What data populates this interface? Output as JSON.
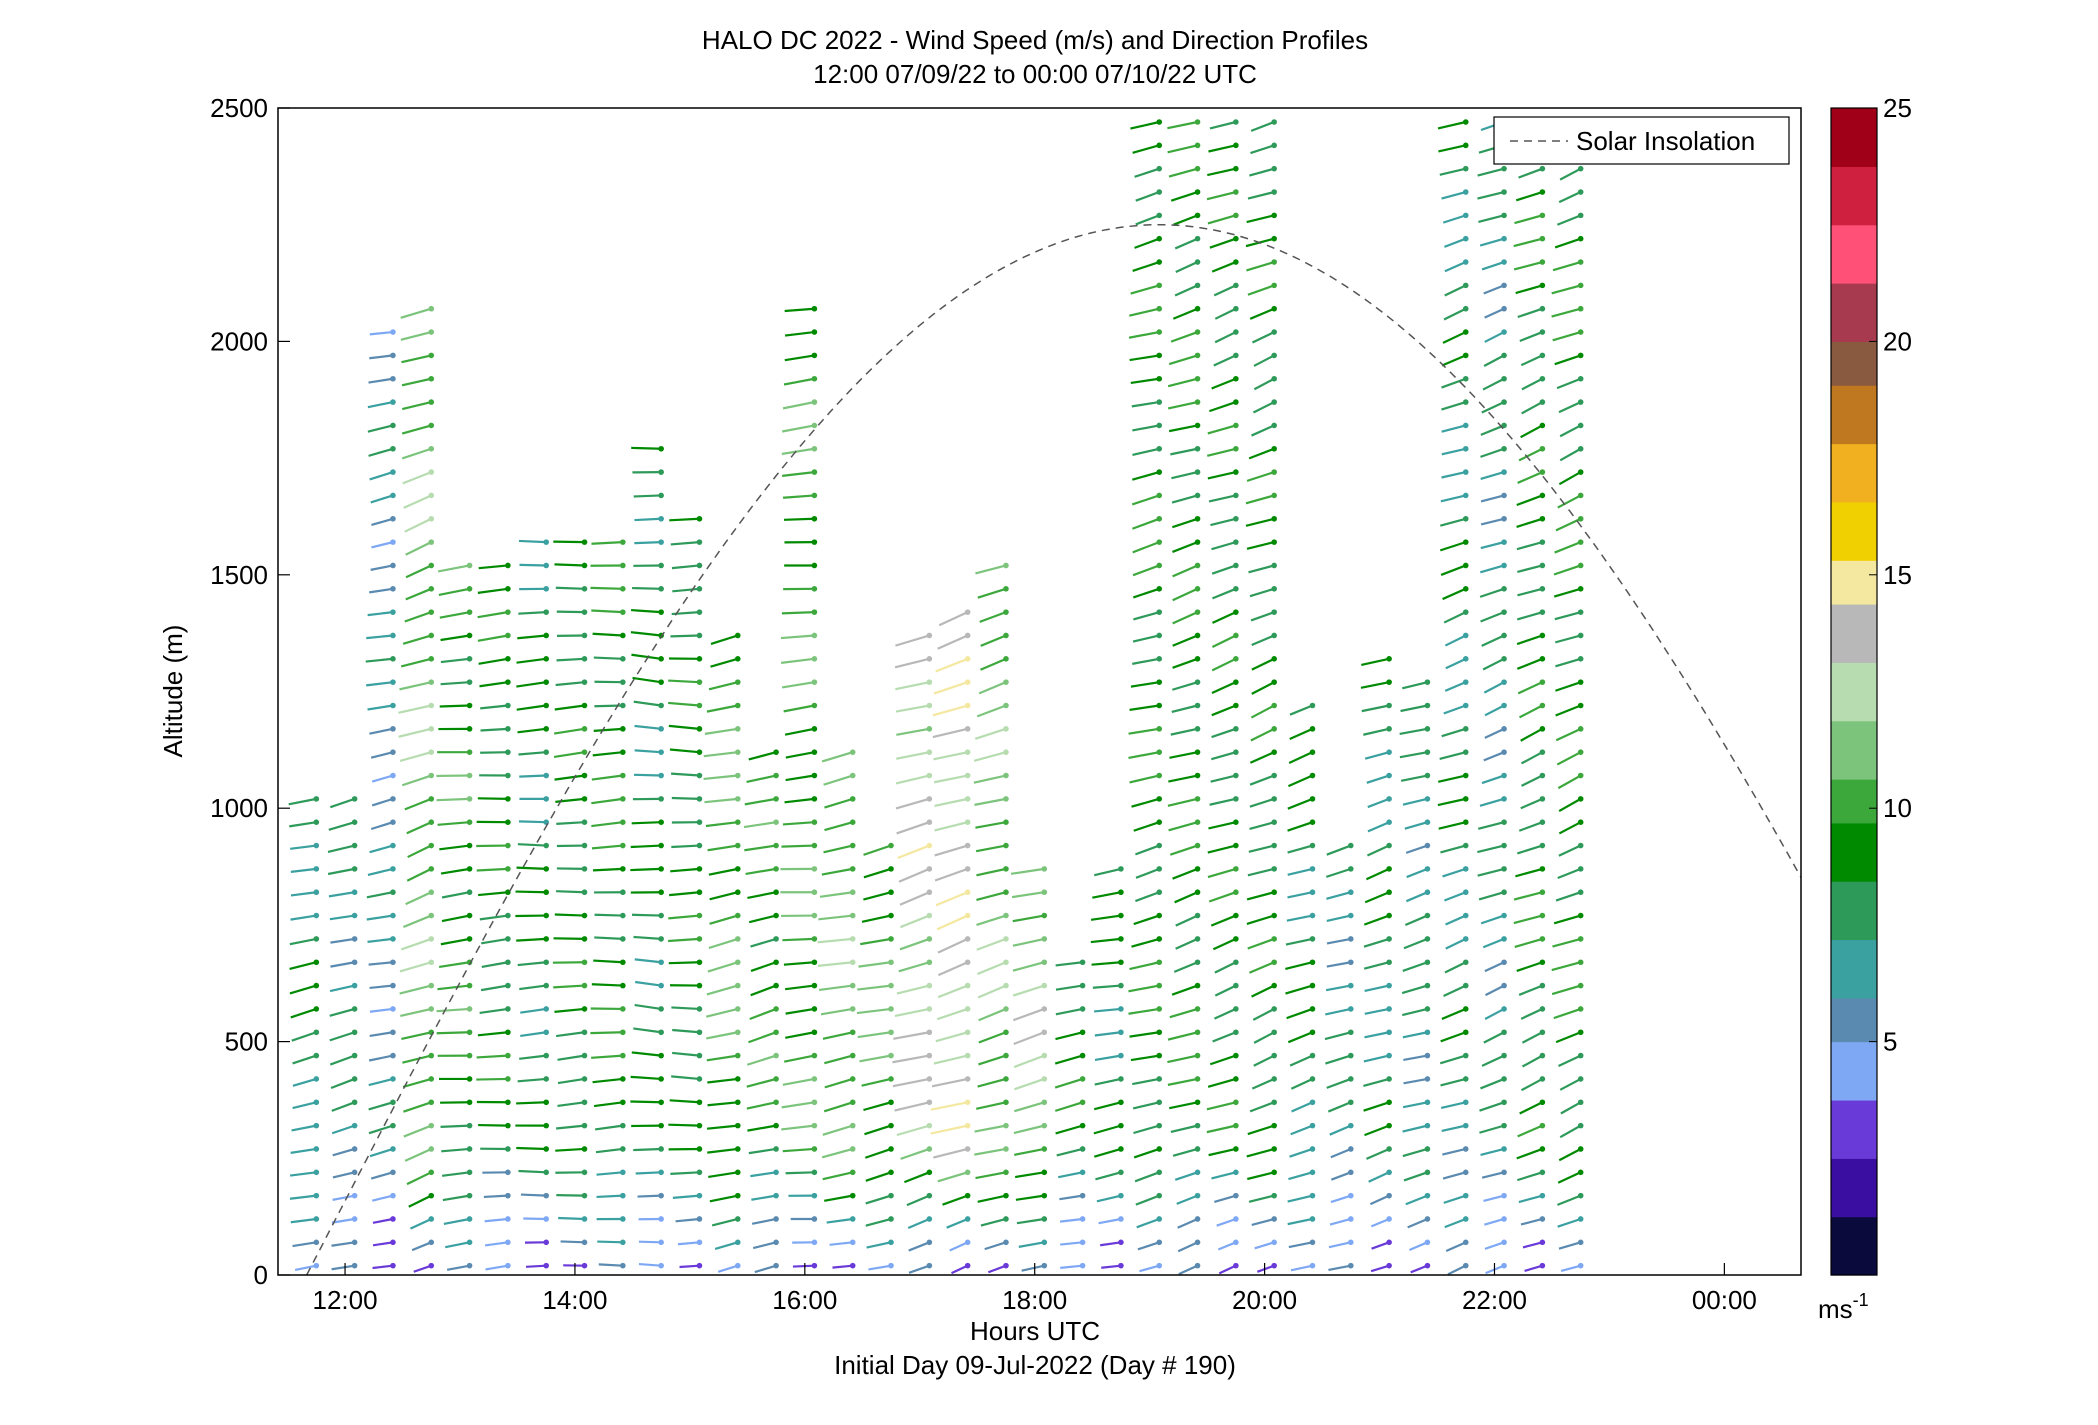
{
  "chart_data": {
    "type": "scatter",
    "title": "HALO DC 2022 - Wind Speed (m/s) and Direction Profiles",
    "subtitle": "12:00 07/09/22 to 00:00 07/10/22  UTC",
    "xlabel": "Hours UTC",
    "xlabel2": "Initial Day 09-Jul-2022 (Day # 190)",
    "ylabel": "Altitude (m)",
    "xlim": [
      "11:25",
      "00:40"
    ],
    "ylim": [
      0,
      2500
    ],
    "x_ticks": [
      "12:00",
      "14:00",
      "16:00",
      "18:00",
      "20:00",
      "22:00",
      "00:00"
    ],
    "y_ticks": [
      "0",
      "500",
      "1000",
      "1500",
      "2000",
      "2500"
    ],
    "grid": false,
    "legend": {
      "position": "top-right",
      "entries": [
        "Solar Insolation"
      ]
    },
    "colorbar": {
      "range": [
        0,
        25
      ],
      "ticks": [
        "5",
        "10",
        "15",
        "20",
        "25"
      ],
      "unit_base": "ms",
      "unit_exp": "-1",
      "colors": [
        "#0a0a3c",
        "#3a0ea0",
        "#6a3ad8",
        "#7ea8f4",
        "#5a8ab0",
        "#3aa0a0",
        "#2e9a5a",
        "#008a00",
        "#3ca83c",
        "#7cc47c",
        "#b6dcb0",
        "#b8b8b8",
        "#f4e8a0",
        "#f0d000",
        "#f0b020",
        "#c07820",
        "#8a5a40",
        "#a83a50",
        "#ff5078",
        "#d02040",
        "#a00018"
      ]
    },
    "series": [
      {
        "name": "Solar Insolation",
        "kind": "dashed-curve",
        "peak_time": "19:05",
        "peak_altitude_m": 2250,
        "start_time": "11:40",
        "end_time": "00:40",
        "end_altitude_m": 760
      }
    ],
    "profiles": [
      {
        "time": "11:45",
        "top_m": 1030,
        "speed_ms": 7.5,
        "dir_deg": 248
      },
      {
        "time": "12:05",
        "top_m": 1060,
        "speed_ms": 7.0,
        "dir_deg": 245
      },
      {
        "time": "12:25",
        "top_m": 2040,
        "speed_ms": 6.0,
        "dir_deg": 250
      },
      {
        "time": "12:45",
        "top_m": 2080,
        "speed_ms": 11.0,
        "dir_deg": 238
      },
      {
        "time": "13:05",
        "top_m": 1530,
        "speed_ms": 9.5,
        "dir_deg": 260
      },
      {
        "time": "13:25",
        "top_m": 1540,
        "speed_ms": 8.5,
        "dir_deg": 262
      },
      {
        "time": "13:45",
        "top_m": 1570,
        "speed_ms": 8.0,
        "dir_deg": 265
      },
      {
        "time": "14:05",
        "top_m": 1580,
        "speed_ms": 8.5,
        "dir_deg": 264
      },
      {
        "time": "14:25",
        "top_m": 1570,
        "speed_ms": 9.0,
        "dir_deg": 266
      },
      {
        "time": "14:45",
        "top_m": 1780,
        "speed_ms": 8.0,
        "dir_deg": 275
      },
      {
        "time": "15:05",
        "top_m": 1660,
        "speed_ms": 8.5,
        "dir_deg": 270
      },
      {
        "time": "15:25",
        "top_m": 1380,
        "speed_ms": 10.5,
        "dir_deg": 250
      },
      {
        "time": "15:45",
        "top_m": 1150,
        "speed_ms": 9.5,
        "dir_deg": 245
      },
      {
        "time": "16:05",
        "top_m": 2080,
        "speed_ms": 10.0,
        "dir_deg": 260
      },
      {
        "time": "16:25",
        "top_m": 1160,
        "speed_ms": 11.0,
        "dir_deg": 250
      },
      {
        "time": "16:45",
        "top_m": 960,
        "speed_ms": 10.5,
        "dir_deg": 248
      },
      {
        "time": "17:05",
        "top_m": 1380,
        "speed_ms": 13.0,
        "dir_deg": 242
      },
      {
        "time": "17:25",
        "top_m": 1460,
        "speed_ms": 13.5,
        "dir_deg": 240
      },
      {
        "time": "17:45",
        "top_m": 1540,
        "speed_ms": 11.0,
        "dir_deg": 242
      },
      {
        "time": "18:05",
        "top_m": 870,
        "speed_ms": 12.0,
        "dir_deg": 245
      },
      {
        "time": "18:25",
        "top_m": 700,
        "speed_ms": 8.5,
        "dir_deg": 250
      },
      {
        "time": "18:45",
        "top_m": 880,
        "speed_ms": 8.0,
        "dir_deg": 252
      },
      {
        "time": "19:05",
        "top_m": 2500,
        "speed_ms": 9.0,
        "dir_deg": 245
      },
      {
        "time": "19:25",
        "top_m": 2500,
        "speed_ms": 9.0,
        "dir_deg": 240
      },
      {
        "time": "19:45",
        "top_m": 2500,
        "speed_ms": 8.5,
        "dir_deg": 238
      },
      {
        "time": "20:05",
        "top_m": 2500,
        "speed_ms": 8.5,
        "dir_deg": 236
      },
      {
        "time": "20:25",
        "top_m": 1240,
        "speed_ms": 8.0,
        "dir_deg": 240
      },
      {
        "time": "20:45",
        "top_m": 960,
        "speed_ms": 7.0,
        "dir_deg": 242
      },
      {
        "time": "21:05",
        "top_m": 1330,
        "speed_ms": 7.5,
        "dir_deg": 240
      },
      {
        "time": "21:25",
        "top_m": 1290,
        "speed_ms": 7.0,
        "dir_deg": 242
      },
      {
        "time": "21:45",
        "top_m": 2500,
        "speed_ms": 7.5,
        "dir_deg": 238
      },
      {
        "time": "22:05",
        "top_m": 2500,
        "speed_ms": 7.0,
        "dir_deg": 236
      },
      {
        "time": "22:25",
        "top_m": 2500,
        "speed_ms": 8.5,
        "dir_deg": 235
      },
      {
        "time": "22:45",
        "top_m": 2500,
        "speed_ms": 9.0,
        "dir_deg": 234
      }
    ]
  }
}
